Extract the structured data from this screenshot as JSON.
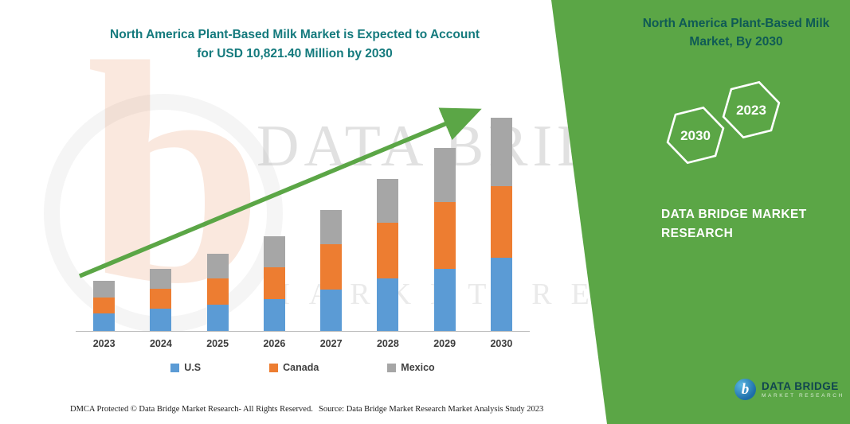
{
  "title": {
    "line1": "North America Plant-Based Milk Market is Expected to Account",
    "line2": "for USD 10,821.40 Million by 2030"
  },
  "ribbon": {
    "heading": "North America Plant-Based Milk Market, By 2030",
    "color": "#5ba646",
    "hexagons": [
      {
        "label": "2030"
      },
      {
        "label": "2023"
      }
    ],
    "brand": "DATA BRIDGE MARKET RESEARCH"
  },
  "logo": {
    "name": "DATA BRIDGE",
    "sub": "MARKET RESEARCH",
    "icon": "b"
  },
  "watermark": {
    "line1": "DATA BRIDGE",
    "line2": "MARKET RESEARCH",
    "letter": "b"
  },
  "footer": {
    "dmca": "DMCA Protected © Data Bridge Market Research-  All Rights Reserved.",
    "source": "Source: Data Bridge Market Research  Market Analysis Study 2023"
  },
  "chart_data": {
    "type": "bar",
    "stacked": true,
    "title": "North America Plant-Based Milk Market is Expected to Account for USD 10,821.40 Million by 2030",
    "unit": "USD Million",
    "categories": [
      "2023",
      "2024",
      "2025",
      "2026",
      "2027",
      "2028",
      "2029",
      "2030"
    ],
    "series": [
      {
        "name": "U.S",
        "color": "#5b9bd5",
        "values": [
          900,
          1150,
          1350,
          1600,
          2100,
          2650,
          3150,
          3700
        ]
      },
      {
        "name": "Canada",
        "color": "#ed7d31",
        "values": [
          800,
          1000,
          1300,
          1650,
          2300,
          2850,
          3400,
          3650
        ]
      },
      {
        "name": "Mexico",
        "color": "#a6a6a6",
        "values": [
          850,
          1000,
          1250,
          1550,
          1750,
          2200,
          2750,
          3471.4
        ]
      }
    ],
    "totals_note": "2030 total = 10821.4 (USD Million), values estimated from bar heights",
    "ylim": [
      0,
      11000
    ],
    "grid": false,
    "legend_position": "bottom",
    "trend_arrow": true
  }
}
